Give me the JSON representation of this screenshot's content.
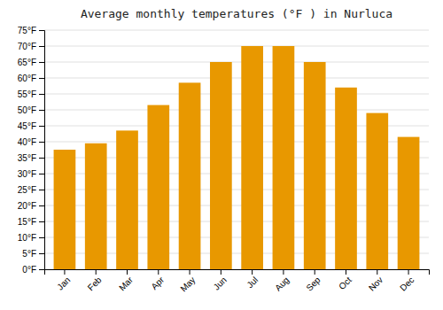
{
  "chart_data": {
    "type": "bar",
    "title": "Average monthly temperatures (°F ) in Nurluca",
    "categories": [
      "Jan",
      "Feb",
      "Mar",
      "Apr",
      "May",
      "Jun",
      "Jul",
      "Aug",
      "Sep",
      "Oct",
      "Nov",
      "Dec"
    ],
    "values": [
      37.5,
      39.5,
      43.5,
      51.5,
      58.5,
      65,
      70,
      70,
      65,
      57,
      49,
      41.5
    ],
    "color": "#E89800",
    "ylim": [
      0,
      75
    ],
    "yticks": [
      {
        "value": 0,
        "label": "0°F"
      },
      {
        "value": 5,
        "label": "5°F"
      },
      {
        "value": 10,
        "label": "10°F"
      },
      {
        "value": 15,
        "label": "15°F"
      },
      {
        "value": 20,
        "label": "20°F"
      },
      {
        "value": 25,
        "label": "25°F"
      },
      {
        "value": 30,
        "label": "30°F"
      },
      {
        "value": 35,
        "label": "35°F"
      },
      {
        "value": 40,
        "label": "40°F"
      },
      {
        "value": 45,
        "label": "45°F"
      },
      {
        "value": 50,
        "label": "50°F"
      },
      {
        "value": 55,
        "label": "55°F"
      },
      {
        "value": 60,
        "label": "60°F"
      },
      {
        "value": 65,
        "label": "65°F"
      },
      {
        "value": 70,
        "label": "70°F"
      },
      {
        "value": 75,
        "label": "75°F"
      }
    ],
    "grid": true
  }
}
